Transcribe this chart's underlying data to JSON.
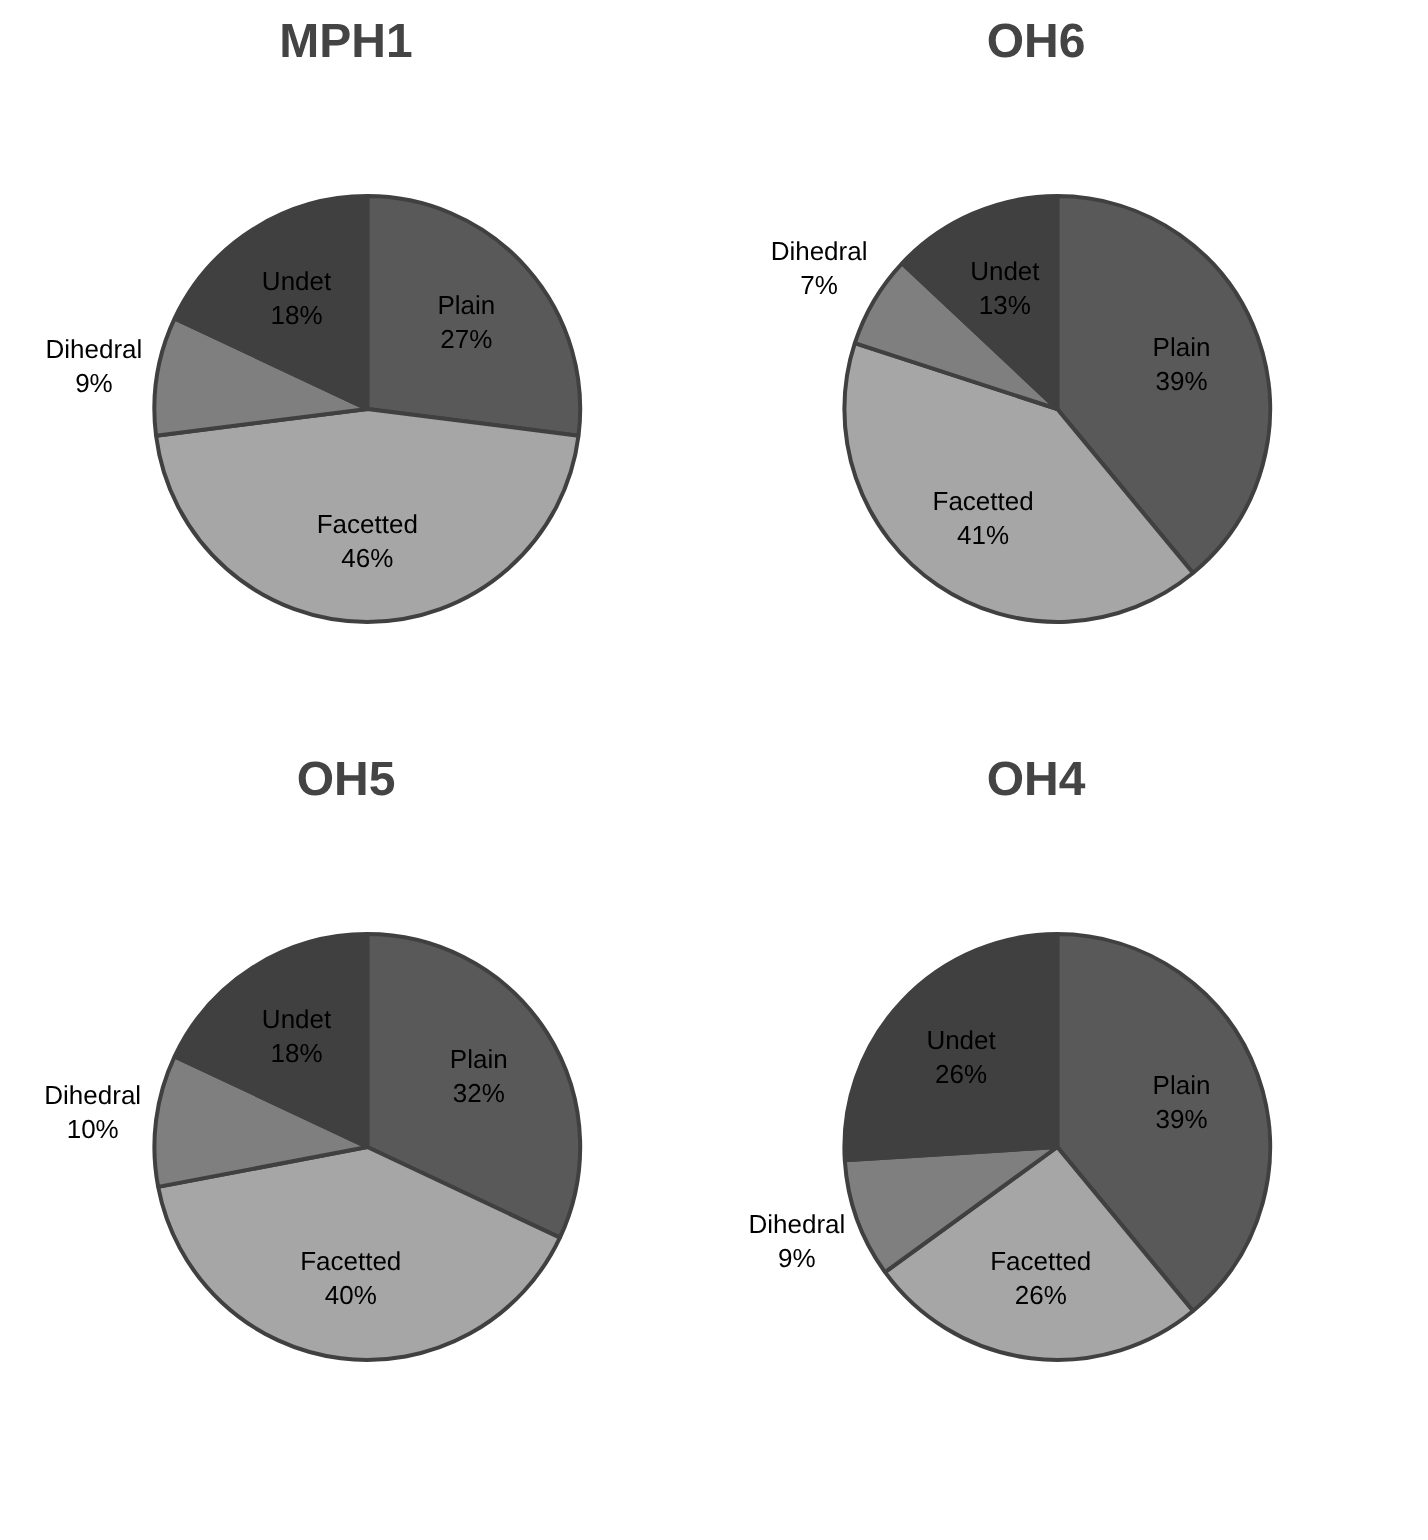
{
  "chart_data": [
    {
      "type": "pie",
      "title": "MPH1",
      "categories": [
        "Plain",
        "Facetted",
        "Dihedral",
        "Undet"
      ],
      "values": [
        27,
        46,
        9,
        18
      ],
      "value_labels": [
        "27%",
        "46%",
        "9%",
        "18%"
      ],
      "colors": [
        "#595959",
        "#a6a6a6",
        "#7f7f7f",
        "#404040"
      ]
    },
    {
      "type": "pie",
      "title": "OH6",
      "categories": [
        "Plain",
        "Facetted",
        "Dihedral",
        "Undet"
      ],
      "values": [
        39,
        41,
        7,
        13
      ],
      "value_labels": [
        "39%",
        "41%",
        "7%",
        "13%"
      ],
      "colors": [
        "#595959",
        "#a6a6a6",
        "#7f7f7f",
        "#404040"
      ]
    },
    {
      "type": "pie",
      "title": "OH5",
      "categories": [
        "Plain",
        "Facetted",
        "Dihedral",
        "Undet"
      ],
      "values": [
        32,
        40,
        10,
        18
      ],
      "value_labels": [
        "32%",
        "40%",
        "10%",
        "18%"
      ],
      "colors": [
        "#595959",
        "#a6a6a6",
        "#7f7f7f",
        "#404040"
      ]
    },
    {
      "type": "pie",
      "title": "OH4",
      "categories": [
        "Plain",
        "Facetted",
        "Dihedral",
        "Undet"
      ],
      "values": [
        39,
        26,
        9,
        26
      ],
      "value_labels": [
        "39%",
        "26%",
        "9%",
        "26%"
      ],
      "colors": [
        "#595959",
        "#a6a6a6",
        "#7f7f7f",
        "#404040"
      ]
    }
  ]
}
